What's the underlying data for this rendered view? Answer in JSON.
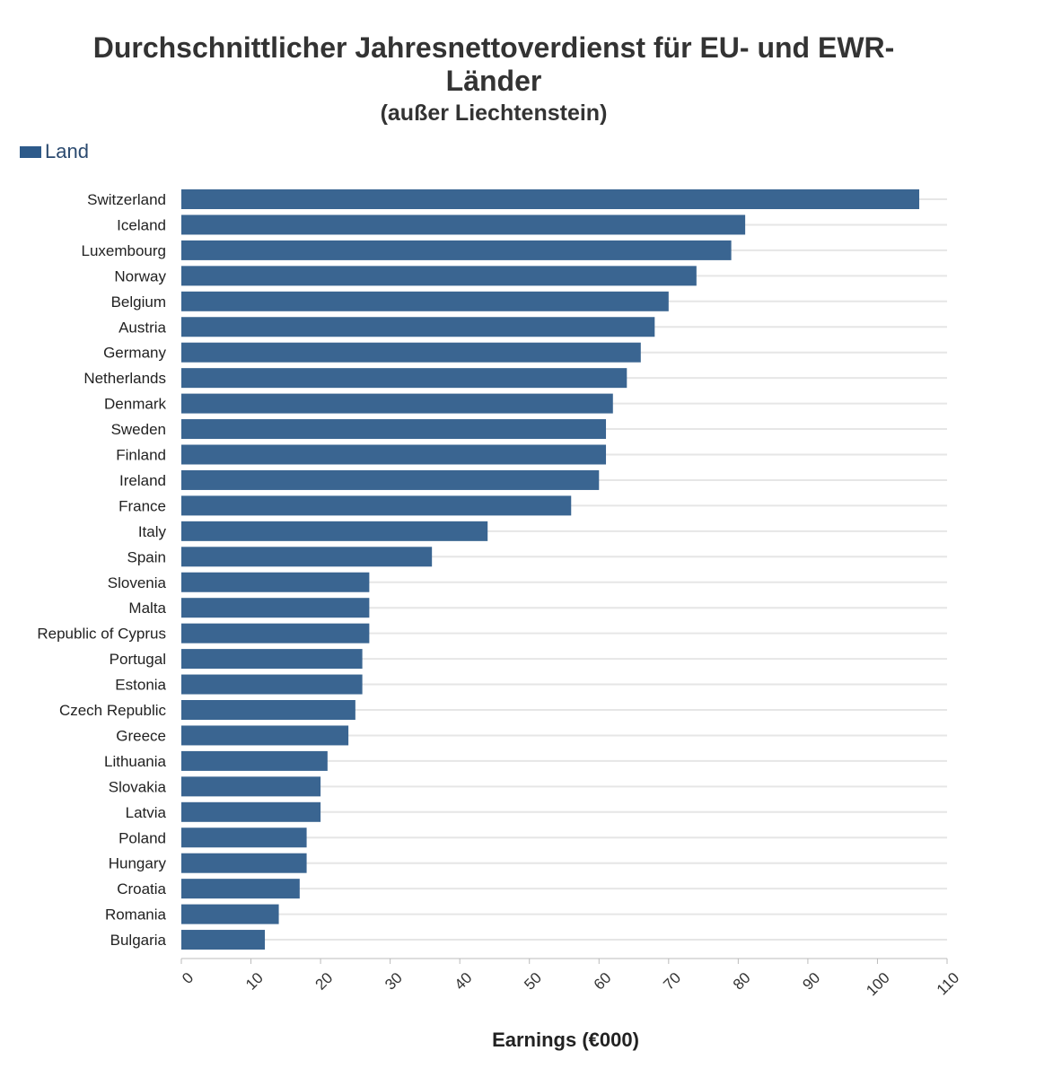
{
  "chart_data": {
    "type": "bar",
    "orientation": "horizontal",
    "title": "Durchschnittlicher Jahresnettoverdienst für EU- und EWR-Länder",
    "title_lines": [
      "Durchschnittlicher Jahresnettoverdienst für EU- und EWR-",
      "Länder"
    ],
    "subtitle": "(außer Liechtenstein)",
    "legend": "Land",
    "xlabel": "Earnings (€000)",
    "ylabel": "",
    "xlim": [
      0,
      110
    ],
    "xticks": [
      0,
      10,
      20,
      30,
      40,
      50,
      60,
      70,
      80,
      90,
      100,
      110
    ],
    "grid": true,
    "bar_color": "#3a6591",
    "categories": [
      "Switzerland",
      "Iceland",
      "Luxembourg",
      "Norway",
      "Belgium",
      "Austria",
      "Germany",
      "Netherlands",
      "Denmark",
      "Sweden",
      "Finland",
      "Ireland",
      "France",
      "Italy",
      "Spain",
      "Slovenia",
      "Malta",
      "Republic of Cyprus",
      "Portugal",
      "Estonia",
      "Czech Republic",
      "Greece",
      "Lithuania",
      "Slovakia",
      "Latvia",
      "Poland",
      "Hungary",
      "Croatia",
      "Romania",
      "Bulgaria"
    ],
    "values": [
      106,
      81,
      79,
      74,
      70,
      68,
      66,
      64,
      62,
      61,
      61,
      60,
      56,
      44,
      36,
      27,
      27,
      27,
      26,
      26,
      25,
      24,
      21,
      20,
      20,
      18,
      18,
      17,
      14,
      12
    ]
  }
}
